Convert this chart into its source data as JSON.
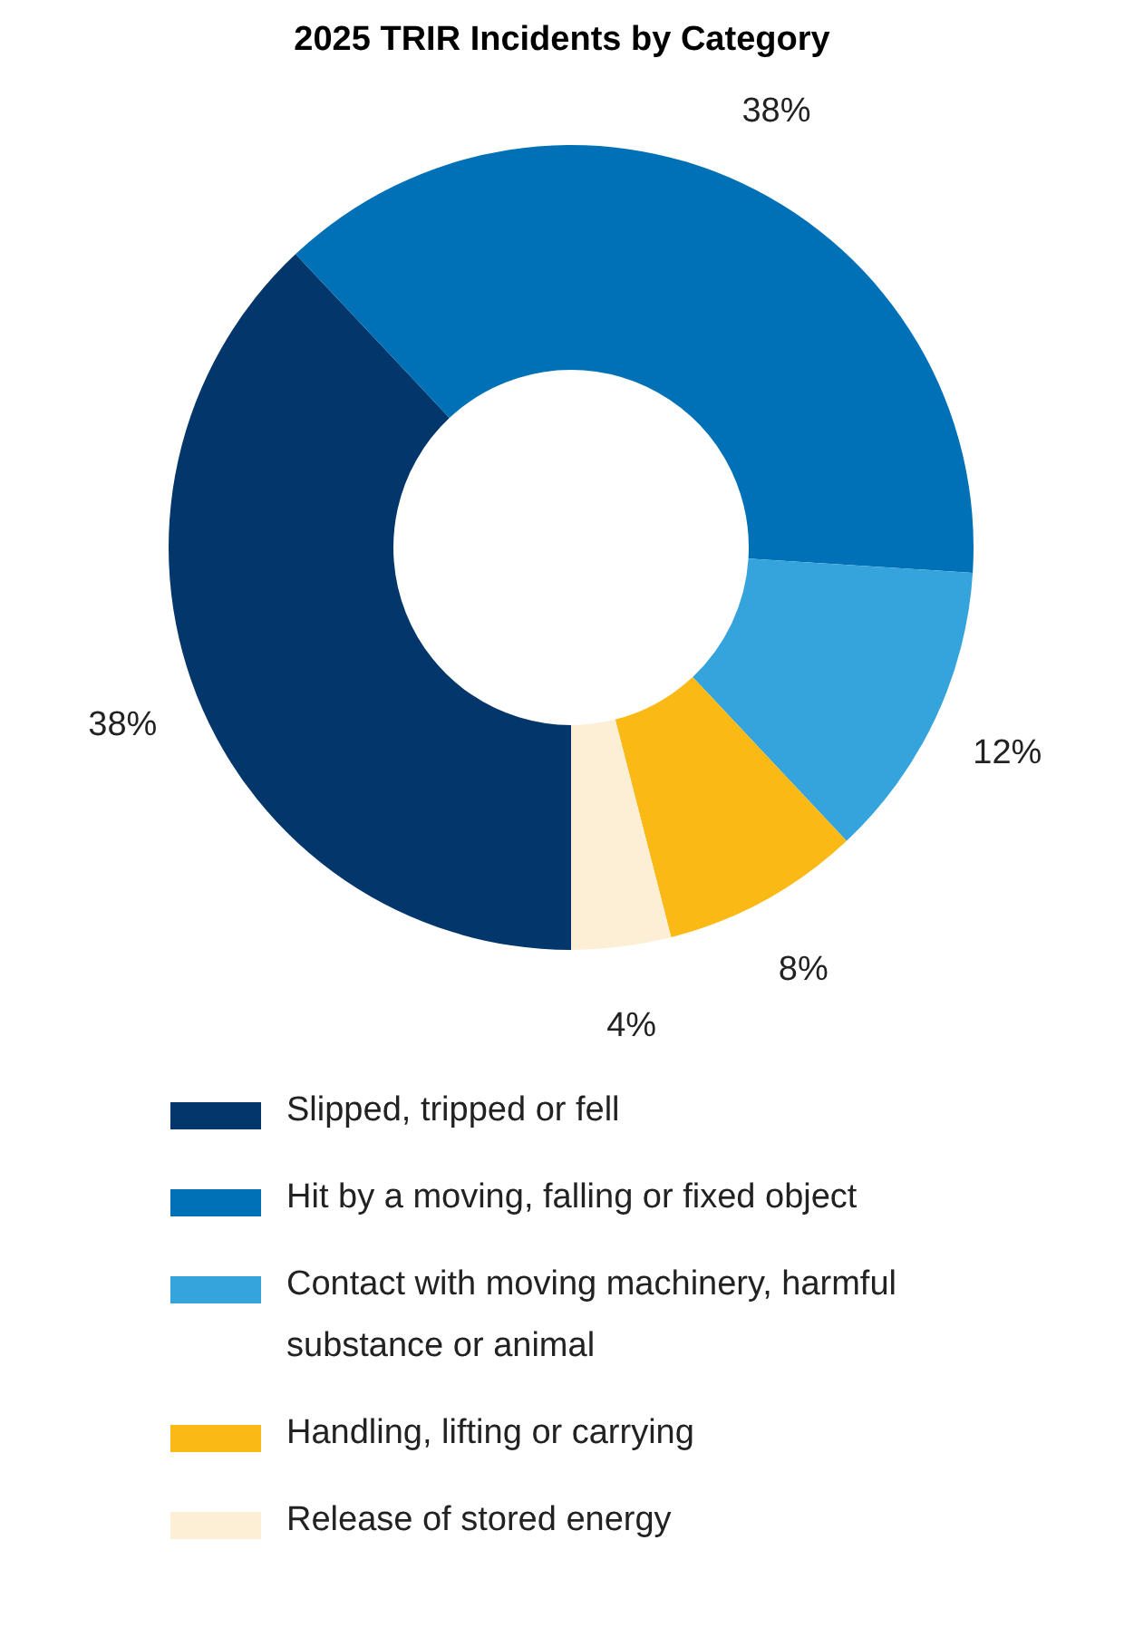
{
  "chart_data": {
    "type": "donut",
    "title": "2025 TRIR Incidents by Category",
    "categories": [
      "Slipped, tripped or fell",
      "Hit by a moving, falling or fixed object",
      "Contact with moving machinery, harmful substance or animal",
      "Handling, lifting or carrying",
      "Release of stored energy"
    ],
    "values": [
      38,
      38,
      12,
      8,
      4
    ],
    "colors": [
      "#03366b",
      "#0071b7",
      "#35a3dc",
      "#fbb916",
      "#fdefd6"
    ],
    "value_labels": [
      "38%",
      "38%",
      "12%",
      "8%",
      "4%"
    ],
    "legend": "bottom"
  }
}
